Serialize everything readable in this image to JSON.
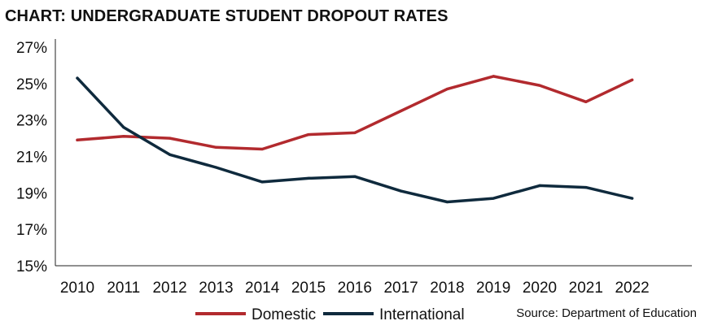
{
  "chart_data": {
    "type": "line",
    "title": "CHART: UNDERGRADUATE STUDENT DROPOUT RATES",
    "xlabel": "",
    "ylabel": "",
    "categories": [
      "2010",
      "2011",
      "2012",
      "2013",
      "2014",
      "2015",
      "2016",
      "2017",
      "2018",
      "2019",
      "2020",
      "2021",
      "2022"
    ],
    "ylim": [
      15,
      27
    ],
    "yticks": [
      15,
      17,
      19,
      21,
      23,
      25,
      27
    ],
    "ytick_suffix": "%",
    "grid": false,
    "legend_position": "bottom",
    "series": [
      {
        "name": "Domestic",
        "color": "#b22a2e",
        "values": [
          21.9,
          22.1,
          22.0,
          21.5,
          21.4,
          22.2,
          22.3,
          23.5,
          24.7,
          25.4,
          24.9,
          24.0,
          25.2
        ]
      },
      {
        "name": "International",
        "color": "#0f2a3d",
        "values": [
          25.3,
          22.6,
          21.1,
          20.4,
          19.6,
          19.8,
          19.9,
          19.1,
          18.5,
          18.7,
          19.4,
          19.3,
          18.7
        ]
      }
    ],
    "source": "Source: Department of Education"
  }
}
